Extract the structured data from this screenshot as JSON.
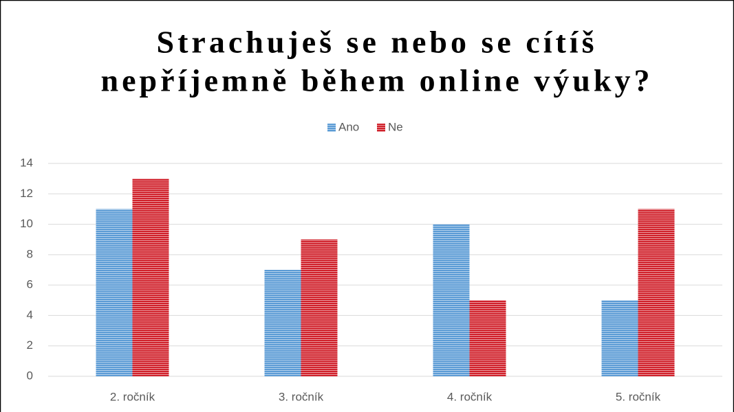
{
  "chart_data": {
    "type": "bar",
    "title": [
      "Strachuješ se nebo se cítíš",
      "nepříjemně během online výuky?"
    ],
    "categories": [
      "2. ročník",
      "3. ročník",
      "4. ročník",
      "5. ročník"
    ],
    "series": [
      {
        "name": "Ano",
        "color": "#5b9bd5",
        "values": [
          11,
          7,
          10,
          5
        ]
      },
      {
        "name": "Ne",
        "color": "#d0202a",
        "values": [
          13,
          9,
          5,
          11
        ]
      }
    ],
    "ylim": [
      0,
      14
    ],
    "yticks": [
      0,
      2,
      4,
      6,
      8,
      10,
      12,
      14
    ],
    "grid": true,
    "legend": "top"
  }
}
